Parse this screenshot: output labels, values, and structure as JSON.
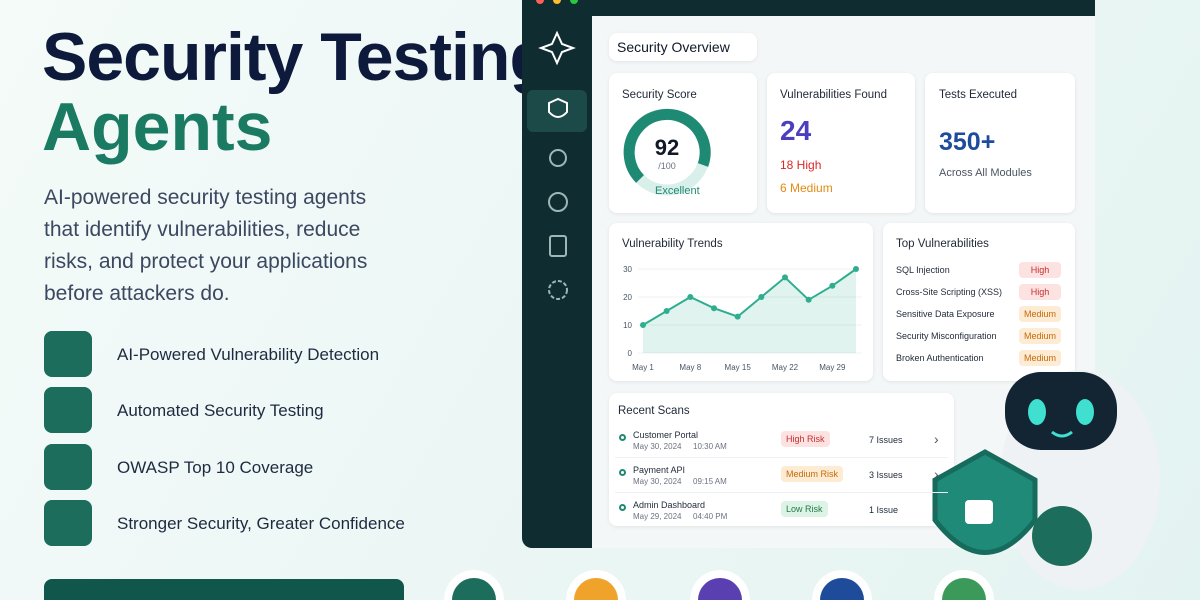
{
  "header": {
    "title_line1": "Security Testing",
    "title_line2": "Agents",
    "description": "AI-powered security testing agents that identify vulnerabilities, reduce risks, and protect your applications before attackers do."
  },
  "features": [
    "AI-Powered Vulnerability Detection",
    "Automated Security Testing",
    "OWASP Top 10 Coverage",
    "Stronger Security, Greater Confidence"
  ],
  "dashboard": {
    "title": "Security Overview",
    "score_card": {
      "label": "Security Score",
      "value": 92,
      "max_label": "/100",
      "rating": "Excellent"
    },
    "vuln_card": {
      "label": "Vulnerabilities Found",
      "total": 24,
      "high": "18 High",
      "medium": "6 Medium"
    },
    "tests_card": {
      "label": "Tests Executed",
      "value": "350+",
      "sub": "Across All Modules"
    },
    "trend_chart": {
      "type": "line",
      "title": "Vulnerability Trends",
      "categories": [
        "May 1",
        null,
        "May 8",
        null,
        "May 15",
        null,
        "May 22",
        null,
        "May 29",
        null
      ],
      "values": [
        10,
        15,
        20,
        16,
        13,
        20,
        27,
        19,
        24,
        30
      ],
      "color": "#2fae8f",
      "ylim": [
        0,
        30
      ],
      "yticks": [
        0,
        10,
        20,
        30
      ]
    },
    "top_vulnerabilities": {
      "title": "Top Vulnerabilities",
      "items": [
        {
          "name": "SQL Injection",
          "severity": "High"
        },
        {
          "name": "Cross-Site Scripting (XSS)",
          "severity": "High"
        },
        {
          "name": "Sensitive Data Exposure",
          "severity": "Medium"
        },
        {
          "name": "Security Misconfiguration",
          "severity": "Medium"
        },
        {
          "name": "Broken Authentication",
          "severity": "Medium"
        }
      ]
    },
    "recent_scans": {
      "title": "Recent Scans",
      "rows": [
        {
          "name": "Customer Portal",
          "date": "May 30, 2024",
          "time": "10:30 AM",
          "risk": "High Risk",
          "issues": "7 Issues"
        },
        {
          "name": "Payment API",
          "date": "May 30, 2024",
          "time": "09:15 AM",
          "risk": "Medium Risk",
          "issues": "3 Issues"
        },
        {
          "name": "Admin Dashboard",
          "date": "May 29, 2024",
          "time": "04:40 PM",
          "risk": "Low Risk",
          "issues": "1 Issue"
        }
      ]
    }
  }
}
